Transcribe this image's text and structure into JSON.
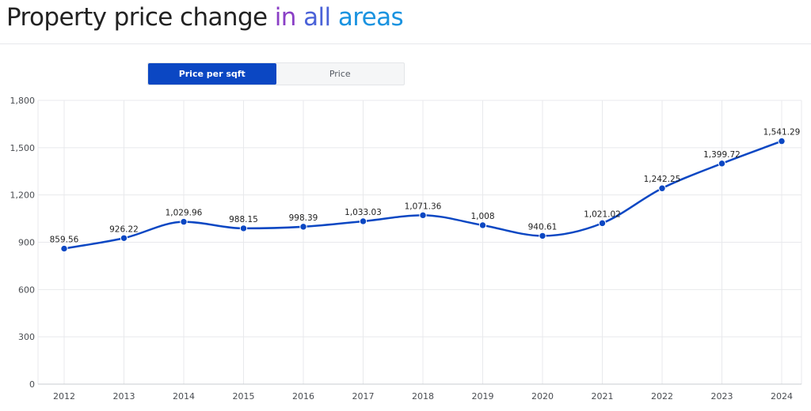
{
  "title": {
    "lead": "Property price change ",
    "w1": "in",
    "w2": "all",
    "w3": "areas"
  },
  "toggle": {
    "active_label": "Price per sqft",
    "inactive_label": "Price"
  },
  "colors": {
    "line": "#0b47c3",
    "grid": "#e8e9ec",
    "axis": "#c9ccd1",
    "tick_text": "#4a4d52",
    "label_text": "#222222"
  },
  "chart_data": {
    "type": "line",
    "x": [
      "2012",
      "2013",
      "2014",
      "2015",
      "2016",
      "2017",
      "2018",
      "2019",
      "2020",
      "2021",
      "2022",
      "2023",
      "2024"
    ],
    "series": [
      {
        "values": [
          859.56,
          926.22,
          1029.96,
          988.15,
          998.39,
          1033.03,
          1071.36,
          1008,
          940.61,
          1021.02,
          1242.25,
          1399.72,
          1541.29
        ],
        "labels": [
          "859.56",
          "926.22",
          "1,029.96",
          "988.15",
          "998.39",
          "1,033.03",
          "1,071.36",
          "1,008",
          "940.61",
          "1,021.02",
          "1,242.25",
          "1,399.72",
          "1,541.29"
        ]
      }
    ],
    "ylim": [
      0,
      1800
    ],
    "yticks": [
      0,
      300,
      600,
      900,
      1200,
      1500,
      1800
    ],
    "ytick_labels": [
      "0",
      "300",
      "600",
      "900",
      "1,200",
      "1,500",
      "1,800"
    ],
    "grid": true,
    "smooth": true
  }
}
